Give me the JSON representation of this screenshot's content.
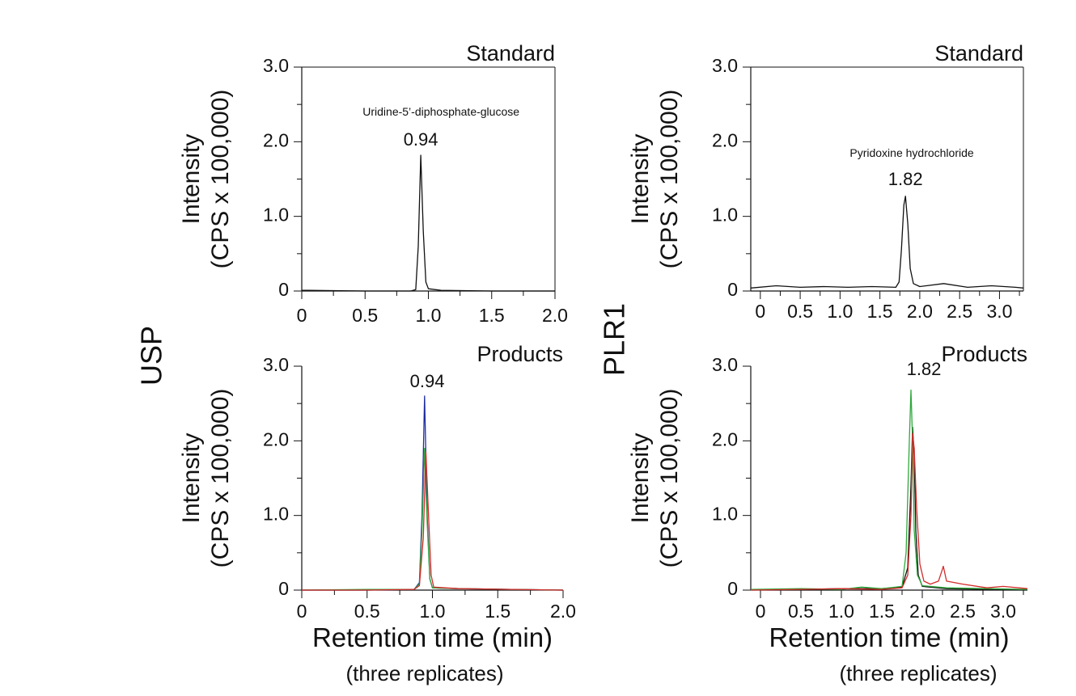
{
  "figure": {
    "group_labels": [
      "USP",
      "PLR1"
    ],
    "x_axis_title": "Retention time (min)",
    "x_axis_note": "(three replicates)"
  },
  "chart_data": [
    {
      "type": "line",
      "group": "USP",
      "panel_title": "Standard",
      "ylabel": [
        "Intensity",
        "(CPS x 100,000)"
      ],
      "xlabel": "",
      "xlim": [
        0,
        2.0
      ],
      "ylim": [
        0,
        3.0
      ],
      "x_ticks": [
        "0",
        "0.5",
        "1.0",
        "1.5",
        "2.0"
      ],
      "y_ticks": [
        "0",
        "1.0",
        "2.0",
        "3.0"
      ],
      "annotations": [
        {
          "text": "Uridine-5’-diphosphate-glucose",
          "x": 1.1,
          "y": 2.35
        },
        {
          "text": "0.94",
          "x": 0.94,
          "y": 1.95
        }
      ],
      "series": [
        {
          "color": "#111111",
          "x": [
            0,
            0.5,
            0.86,
            0.9,
            0.92,
            0.94,
            0.96,
            0.98,
            1.0,
            1.1,
            1.5,
            2.0
          ],
          "values": [
            0.01,
            0.0,
            0.0,
            0.02,
            0.6,
            1.82,
            0.8,
            0.12,
            0.03,
            0.01,
            0.0,
            0.0
          ]
        }
      ]
    },
    {
      "type": "line",
      "group": "PLR1",
      "panel_title": "Standard",
      "ylabel": [
        "Intensity",
        "(CPS x 100,000)"
      ],
      "xlabel": "",
      "xlim": [
        -0.12,
        3.3
      ],
      "ylim": [
        0,
        3.0
      ],
      "x_ticks": [
        "0",
        "0.5",
        "1.0",
        "1.5",
        "2.0",
        "2.5",
        "3.0"
      ],
      "y_ticks": [
        "0",
        "1.0",
        "2.0",
        "3.0"
      ],
      "annotations": [
        {
          "text": "Pyridoxine hydrochloride",
          "x": 1.9,
          "y": 1.8
        },
        {
          "text": "1.82",
          "x": 1.82,
          "y": 1.42
        }
      ],
      "series": [
        {
          "color": "#111111",
          "x": [
            -0.12,
            0.2,
            0.5,
            0.8,
            1.1,
            1.4,
            1.7,
            1.74,
            1.77,
            1.8,
            1.82,
            1.85,
            1.88,
            1.92,
            2.0,
            2.3,
            2.6,
            2.9,
            3.2,
            3.3
          ],
          "values": [
            0.04,
            0.07,
            0.05,
            0.06,
            0.05,
            0.06,
            0.05,
            0.12,
            0.55,
            1.15,
            1.27,
            0.9,
            0.3,
            0.1,
            0.06,
            0.1,
            0.05,
            0.07,
            0.05,
            0.04
          ]
        }
      ]
    },
    {
      "type": "line",
      "group": "USP",
      "panel_title": "Products",
      "ylabel": [
        "Intensity",
        "(CPS x 100,000)"
      ],
      "xlabel": "Retention time (min)",
      "xlim": [
        0,
        2.0
      ],
      "ylim": [
        0,
        3.0
      ],
      "x_ticks": [
        "0",
        "0.5",
        "1.0",
        "1.5",
        "2.0"
      ],
      "y_ticks": [
        "0",
        "1.0",
        "2.0",
        "3.0"
      ],
      "annotations": [
        {
          "text": "0.94",
          "x": 0.96,
          "y": 2.72
        }
      ],
      "series": [
        {
          "color": "#1f2e9e",
          "x": [
            0,
            0.5,
            0.86,
            0.9,
            0.92,
            0.94,
            0.96,
            0.98,
            1.0,
            1.2,
            1.6,
            2.0
          ],
          "values": [
            0.0,
            0.0,
            0.01,
            0.1,
            1.0,
            2.6,
            1.0,
            0.15,
            0.03,
            0.02,
            0.01,
            0.0
          ]
        },
        {
          "color": "#2fa83c",
          "x": [
            0,
            0.5,
            0.86,
            0.9,
            0.92,
            0.94,
            0.96,
            0.98,
            1.0,
            1.2,
            1.6,
            2.0
          ],
          "values": [
            0.0,
            0.01,
            0.01,
            0.08,
            0.8,
            1.9,
            0.9,
            0.15,
            0.03,
            0.02,
            0.01,
            0.0
          ]
        },
        {
          "color": "#d42a2a",
          "x": [
            0,
            0.5,
            0.86,
            0.9,
            0.93,
            0.95,
            0.97,
            0.99,
            1.01,
            1.2,
            1.6,
            2.0
          ],
          "values": [
            0.0,
            0.0,
            0.01,
            0.06,
            0.7,
            1.85,
            1.0,
            0.2,
            0.04,
            0.02,
            0.01,
            0.0
          ]
        }
      ]
    },
    {
      "type": "line",
      "group": "PLR1",
      "panel_title": "Products",
      "ylabel": [
        "Intensity",
        "(CPS x 100,000)"
      ],
      "xlabel": "Retention time (min)",
      "xlim": [
        -0.12,
        3.3
      ],
      "ylim": [
        0,
        3.0
      ],
      "x_ticks": [
        "0",
        "0.5",
        "1.0",
        "1.5",
        "2.0",
        "2.5",
        "3.0"
      ],
      "y_ticks": [
        "0",
        "1.0",
        "2.0",
        "3.0"
      ],
      "annotations": [
        {
          "text": "1.82",
          "x": 2.02,
          "y": 2.88
        }
      ],
      "series": [
        {
          "color": "#111111",
          "x": [
            -0.12,
            0.5,
            1.0,
            1.5,
            1.75,
            1.82,
            1.86,
            1.88,
            1.9,
            1.92,
            1.95,
            2.0,
            2.3,
            2.8,
            3.3
          ],
          "values": [
            0.01,
            0.01,
            0.02,
            0.02,
            0.04,
            0.3,
            1.4,
            2.18,
            1.8,
            0.8,
            0.2,
            0.05,
            0.02,
            0.01,
            0.01
          ]
        },
        {
          "color": "#2fa83c",
          "x": [
            -0.12,
            0.5,
            1.0,
            1.25,
            1.5,
            1.75,
            1.8,
            1.84,
            1.86,
            1.88,
            1.9,
            1.94,
            2.0,
            2.3,
            2.8,
            3.3
          ],
          "values": [
            0.01,
            0.02,
            0.01,
            0.04,
            0.02,
            0.05,
            0.5,
            2.0,
            2.68,
            2.0,
            0.8,
            0.2,
            0.06,
            0.03,
            0.02,
            0.01
          ]
        },
        {
          "color": "#d42a2a",
          "x": [
            -0.12,
            0.5,
            1.0,
            1.5,
            1.75,
            1.82,
            1.86,
            1.88,
            1.9,
            1.93,
            1.97,
            2.02,
            2.1,
            2.2,
            2.24,
            2.26,
            2.3,
            2.5,
            2.8,
            3.0,
            3.3
          ],
          "values": [
            0.0,
            0.01,
            0.02,
            0.01,
            0.03,
            0.2,
            1.0,
            2.1,
            1.9,
            1.1,
            0.35,
            0.12,
            0.08,
            0.12,
            0.25,
            0.32,
            0.12,
            0.08,
            0.03,
            0.05,
            0.02
          ]
        }
      ]
    }
  ]
}
